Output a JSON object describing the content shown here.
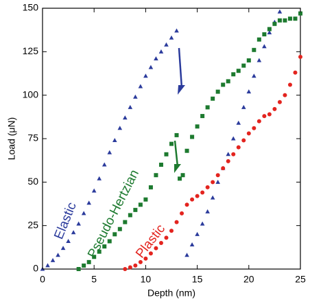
{
  "chart_data": {
    "type": "scatter",
    "x_label": "Depth (nm)",
    "y_label": "Load (μN)",
    "xlim": [
      0,
      25
    ],
    "ylim": [
      0,
      150
    ],
    "xticks": [
      0,
      5,
      10,
      15,
      20,
      25
    ],
    "yticks": [
      0,
      25,
      50,
      75,
      100,
      125,
      150
    ],
    "series": [
      {
        "name": "Elastic",
        "color": "#2b3b9c",
        "marker": "triangle",
        "x": [
          0,
          0.5,
          1,
          1.5,
          2,
          2.5,
          3,
          3.5,
          4,
          4.5,
          5,
          5.5,
          6,
          6.5,
          7,
          7.5,
          8,
          8.5,
          9,
          9.5,
          10,
          10.5,
          11,
          11.5,
          12,
          12.5,
          13,
          14,
          14.5,
          15,
          15.5,
          16,
          16.5,
          17,
          17.5,
          18,
          18.5,
          19,
          19.5,
          20,
          20.5,
          21,
          21.5,
          22,
          22.5,
          23
        ],
        "values": [
          0,
          2,
          5,
          8,
          12,
          16,
          21,
          26,
          32,
          38,
          45,
          52,
          60,
          67,
          74,
          81,
          87,
          93,
          99,
          105,
          111,
          116,
          121,
          125,
          129,
          133,
          137,
          8,
          14,
          20,
          26,
          33,
          41,
          50,
          58,
          66,
          75,
          84,
          93,
          102,
          111,
          120,
          128,
          136,
          142,
          148
        ]
      },
      {
        "name": "Pseudo-Hertzian",
        "color": "#1d7a2f",
        "marker": "square",
        "x": [
          3.5,
          4,
          4.5,
          5,
          5.5,
          6,
          6.5,
          7,
          7.5,
          8,
          8.5,
          9,
          9.5,
          10,
          10.5,
          11,
          11.5,
          12,
          12.5,
          13,
          13.3,
          13.6,
          14,
          14.5,
          15,
          15.5,
          16,
          16.5,
          17,
          17.5,
          18,
          18.5,
          19,
          19.5,
          20,
          20.5,
          21,
          21.5,
          22,
          22.5,
          23,
          23.5,
          24,
          24.5,
          25
        ],
        "values": [
          0,
          2,
          4,
          7,
          10,
          13,
          16,
          20,
          23,
          27,
          31,
          34,
          37,
          40,
          47,
          54,
          60,
          66,
          72,
          77,
          52,
          54,
          68,
          76,
          82,
          88,
          93,
          98,
          102,
          106,
          108,
          112,
          114,
          117,
          120,
          126,
          132,
          135,
          138,
          141,
          143,
          143,
          144,
          144,
          147
        ]
      },
      {
        "name": "Plastic",
        "color": "#e3241f",
        "marker": "circle",
        "x": [
          8,
          8.5,
          9,
          9.5,
          10,
          10.5,
          11,
          11.5,
          12,
          12.5,
          13,
          13.5,
          14,
          14.5,
          15,
          15.5,
          16,
          16.5,
          17,
          17.5,
          18,
          18.5,
          19,
          19.5,
          20,
          20.5,
          21,
          21.5,
          22,
          22.5,
          23,
          23.5,
          24,
          24.5,
          25
        ],
        "values": [
          0,
          1,
          2,
          4,
          6,
          9,
          12,
          15,
          18,
          22,
          27,
          32,
          37,
          40,
          42,
          44,
          47,
          50,
          54,
          58,
          62,
          66,
          70,
          74,
          78,
          81,
          85,
          88,
          89,
          92,
          96,
          100,
          106,
          113,
          122
        ]
      }
    ]
  }
}
